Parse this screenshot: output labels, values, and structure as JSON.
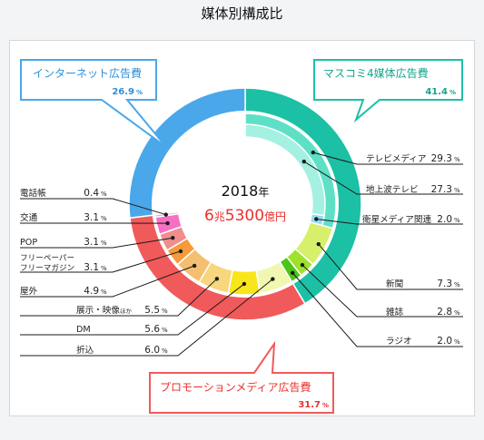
{
  "page_title": "媒体別構成比",
  "chart_data": {
    "type": "pie",
    "style": "nested-donut",
    "center": {
      "year": "2018",
      "year_unit": "年",
      "total_a": "6",
      "total_a_unit": "兆",
      "total_b": "5300",
      "total_b_unit": "億円"
    },
    "groups": [
      {
        "name": "インターネット広告費",
        "pct": "26.9",
        "value": 26.9,
        "color": "#4aa7ea"
      },
      {
        "name": "マスコミ4媒体広告費",
        "pct": "41.4",
        "value": 41.4,
        "color": "#1cc0a5"
      },
      {
        "name": "プロモーションメディア広告費",
        "pct": "31.7",
        "value": 31.7,
        "color": "#f05a5a"
      }
    ],
    "media": [
      {
        "name": "テレビメディア",
        "pct": "29.3",
        "value": 29.3,
        "group": "マスコミ4媒体広告費",
        "color": "#5ee0c7"
      },
      {
        "name": "地上波テレビ",
        "pct": "27.3",
        "value": 27.3,
        "group": "マスコミ4媒体広告費",
        "color": "#a4f1e2"
      },
      {
        "name": "衛星メディア関連",
        "pct": "2.0",
        "value": 2.0,
        "group": "マスコミ4媒体広告費",
        "color": "#93dcf1"
      },
      {
        "name": "新聞",
        "pct": "7.3",
        "value": 7.3,
        "group": "マスコミ4媒体広告費",
        "color": "#d7f06b"
      },
      {
        "name": "雑誌",
        "pct": "2.8",
        "value": 2.8,
        "group": "マスコミ4媒体広告費",
        "color": "#9ee22a"
      },
      {
        "name": "ラジオ",
        "pct": "2.0",
        "value": 2.0,
        "group": "マスコミ4媒体広告費",
        "color": "#4cc418"
      },
      {
        "name": "折込",
        "pct": "6.0",
        "value": 6.0,
        "group": "プロモーションメディア広告費",
        "color": "#f1f7b0"
      },
      {
        "name": "DM",
        "pct": "5.6",
        "value": 5.6,
        "group": "プロモーションメディア広告費",
        "color": "#f8e61a"
      },
      {
        "name": "展示・映像ほか",
        "pct": "5.5",
        "value": 5.5,
        "group": "プロモーションメディア広告費",
        "color": "#f6d77e"
      },
      {
        "name": "屋外",
        "pct": "4.9",
        "value": 4.9,
        "group": "プロモーションメディア広告費",
        "color": "#f5bf72"
      },
      {
        "name": "フリーペーパー・フリーマガジン",
        "pct": "3.1",
        "value": 3.1,
        "group": "プロモーションメディア広告費",
        "color": "#f69a3c"
      },
      {
        "name": "POP",
        "pct": "3.1",
        "value": 3.1,
        "group": "プロモーションメディア広告費",
        "color": "#f08d8d"
      },
      {
        "name": "交通",
        "pct": "3.1",
        "value": 3.1,
        "group": "プロモーションメディア広告費",
        "color": "#f76fc2"
      },
      {
        "name": "電話帳",
        "pct": "0.4",
        "value": 0.4,
        "group": "プロモーションメディア広告費",
        "color": "#c99be8"
      }
    ],
    "label_text": {
      "テレビメディア": "テレビメディア",
      "地上波テレビ": "地上波テレビ",
      "衛星メディア関連": "衛星メディア関連",
      "新聞": "新聞",
      "雑誌": "雑誌",
      "ラジオ": "ラジオ",
      "折込": "折込",
      "DM": "DM",
      "展示・映像ほか_main": "展示・映像",
      "展示・映像ほか_small": "ほか",
      "屋外": "屋外",
      "フリーペーパー_1": "フリーペーパー",
      "フリーペーパー_2": "フリーマガジン",
      "POP": "POP",
      "交通": "交通",
      "電話帳": "電話帳"
    },
    "unit": "%"
  }
}
